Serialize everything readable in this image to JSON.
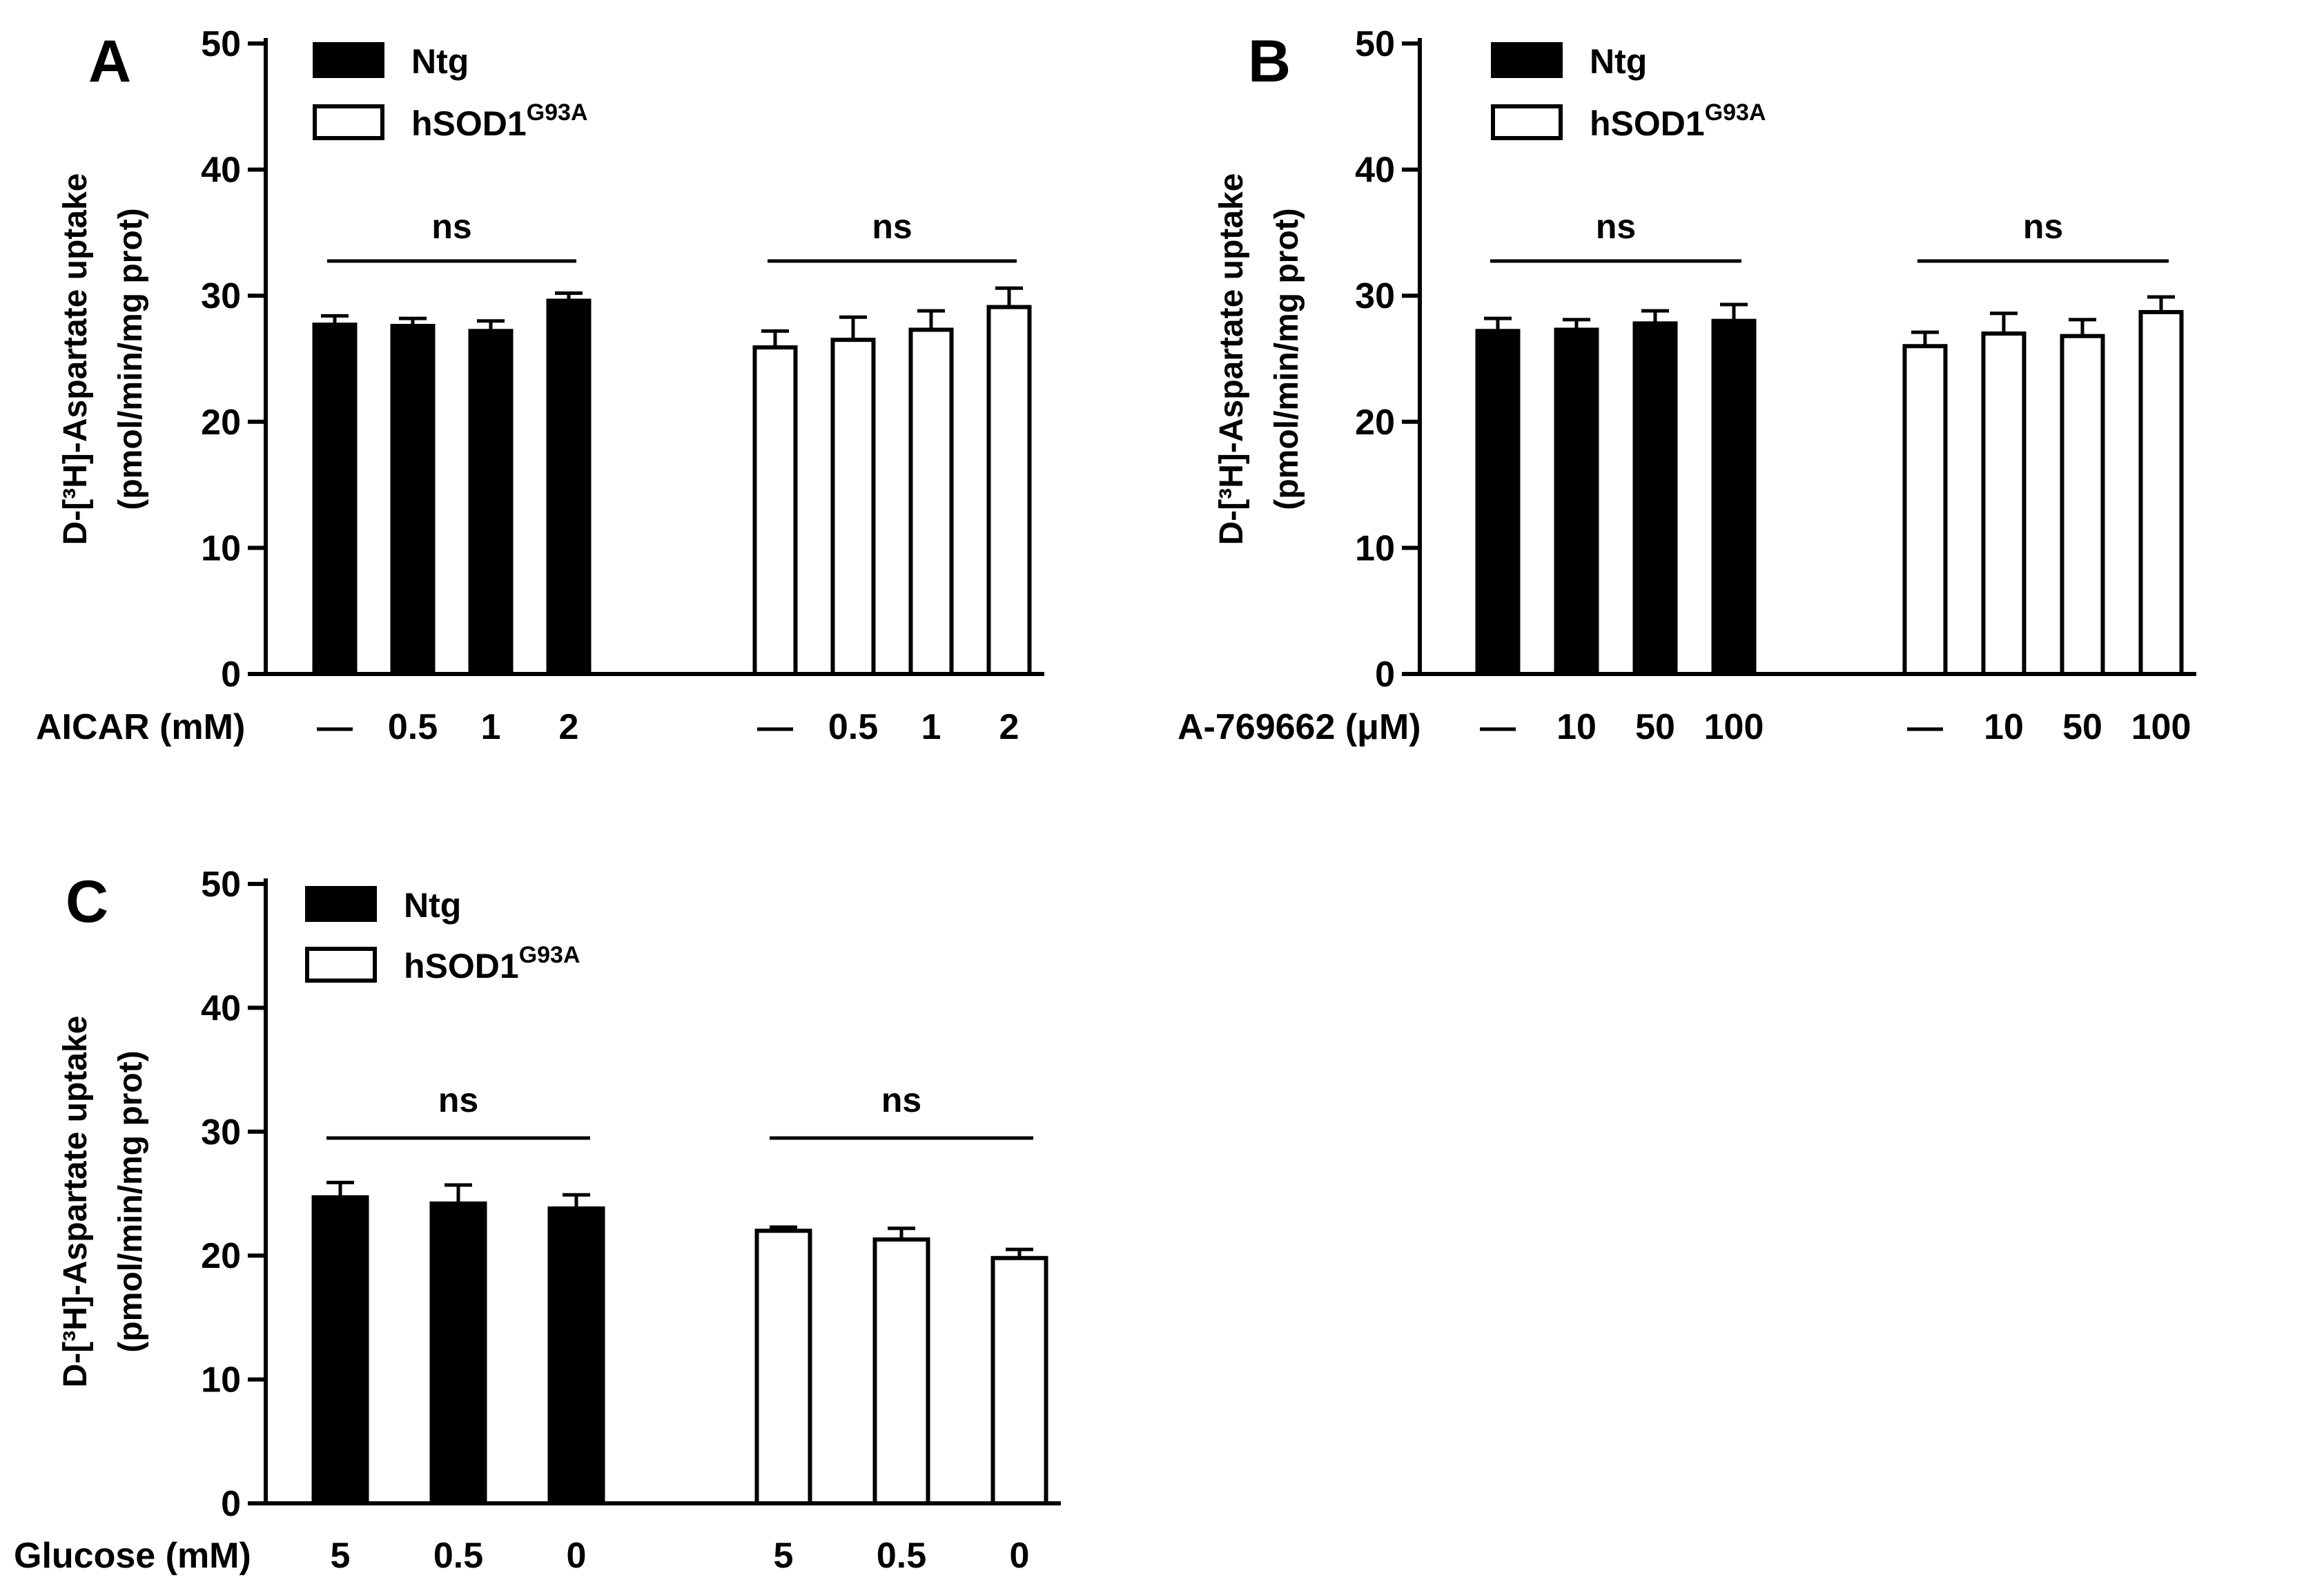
{
  "chart_data": [
    {
      "type": "bar",
      "panel": "A",
      "xlabel": "AICAR (mM)",
      "ylabel_line1": "D-[³H]-Aspartate uptake",
      "ylabel_line2": "(pmol/min/mg prot)",
      "ylim": [
        0,
        50
      ],
      "yticks": [
        0,
        10,
        20,
        30,
        40,
        50
      ],
      "legend_position": "top-left",
      "categories": [
        "—",
        "0.5",
        "1",
        "2"
      ],
      "series": [
        {
          "name": "Ntg",
          "fill": "#000000",
          "values": [
            27.7,
            27.6,
            27.2,
            29.6
          ],
          "errors": [
            0.7,
            0.6,
            0.8,
            0.6
          ]
        },
        {
          "name": "hSOD1",
          "name_sup": "G93A",
          "fill": "#ffffff",
          "values": [
            25.9,
            26.5,
            27.3,
            29.1
          ],
          "errors": [
            1.3,
            1.8,
            1.5,
            1.5
          ]
        }
      ],
      "annotations": [
        "ns",
        "ns"
      ]
    },
    {
      "type": "bar",
      "panel": "B",
      "xlabel": "A-769662 (μM)",
      "ylabel_line1": "D-[³H]-Aspartate uptake",
      "ylabel_line2": "(pmol/min/mg prot)",
      "ylim": [
        0,
        50
      ],
      "yticks": [
        0,
        10,
        20,
        30,
        40,
        50
      ],
      "legend_position": "top-left",
      "categories": [
        "—",
        "10",
        "50",
        "100"
      ],
      "series": [
        {
          "name": "Ntg",
          "fill": "#000000",
          "values": [
            27.2,
            27.3,
            27.8,
            28.0
          ],
          "errors": [
            1.0,
            0.8,
            1.0,
            1.3
          ]
        },
        {
          "name": "hSOD1",
          "name_sup": "G93A",
          "fill": "#ffffff",
          "values": [
            26.0,
            27.0,
            26.8,
            28.7
          ],
          "errors": [
            1.1,
            1.6,
            1.3,
            1.2
          ]
        }
      ],
      "annotations": [
        "ns",
        "ns"
      ]
    },
    {
      "type": "bar",
      "panel": "C",
      "xlabel": "Glucose (mM)",
      "ylabel_line1": "D-[³H]-Aspartate uptake",
      "ylabel_line2": "(pmol/min/mg prot)",
      "ylim": [
        0,
        50
      ],
      "yticks": [
        0,
        10,
        20,
        30,
        40,
        50
      ],
      "legend_position": "top-left",
      "categories": [
        "5",
        "0.5",
        "0"
      ],
      "series": [
        {
          "name": "Ntg",
          "fill": "#000000",
          "values": [
            24.7,
            24.2,
            23.8
          ],
          "errors": [
            1.2,
            1.5,
            1.1
          ]
        },
        {
          "name": "hSOD1",
          "name_sup": "G93A",
          "fill": "#ffffff",
          "values": [
            22.0,
            21.3,
            19.8
          ],
          "errors": [
            0.3,
            0.9,
            0.7
          ]
        }
      ],
      "annotations": [
        "ns",
        "ns"
      ]
    }
  ]
}
